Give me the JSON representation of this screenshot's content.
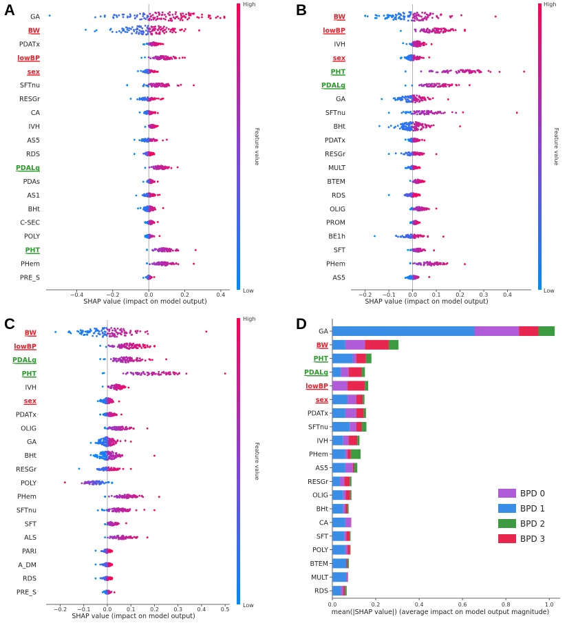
{
  "colorbar": {
    "high": "High",
    "low": "Low",
    "title": "Feature value",
    "color_high": "#ff0052",
    "color_low": "#008bfb"
  },
  "chart_data": [
    {
      "panel": "A",
      "type": "beeswarm",
      "xlabel": "SHAP value (impact on model output)",
      "xlim": [
        -0.57,
        0.45
      ],
      "xticks": [
        -0.4,
        -0.2,
        0.0,
        0.2,
        0.4
      ],
      "tick_labels": [
        "−0.4",
        "−0.2",
        "0.0",
        "0.2",
        "0.4"
      ],
      "features": [
        {
          "name": "GA",
          "style": "plain",
          "min": -0.55,
          "max": 0.42,
          "center": 0.1,
          "spread": 0.45,
          "thick": 5
        },
        {
          "name": "BW",
          "style": "red",
          "min": -0.35,
          "max": 0.28,
          "center": 0.0,
          "spread": 0.3,
          "thick": 5
        },
        {
          "name": "PDATx",
          "style": "plain",
          "min": -0.03,
          "max": 0.08,
          "center": 0.03,
          "spread": 0.05,
          "thick": 2
        },
        {
          "name": "lowBP",
          "style": "red",
          "min": -0.04,
          "max": 0.2,
          "center": 0.08,
          "spread": 0.12,
          "thick": 2
        },
        {
          "name": "sex",
          "style": "red",
          "min": -0.06,
          "max": 0.05,
          "center": 0.0,
          "spread": 0.05,
          "thick": 2
        },
        {
          "name": "SFTnu",
          "style": "plain",
          "min": -0.12,
          "max": 0.25,
          "center": 0.05,
          "spread": 0.15,
          "thick": 2
        },
        {
          "name": "RESGr",
          "style": "plain",
          "min": -0.1,
          "max": 0.08,
          "center": 0.0,
          "spread": 0.08,
          "thick": 2
        },
        {
          "name": "CA",
          "style": "plain",
          "min": -0.05,
          "max": 0.05,
          "center": 0.0,
          "spread": 0.04,
          "thick": 2
        },
        {
          "name": "IVH",
          "style": "plain",
          "min": -0.02,
          "max": 0.05,
          "center": 0.02,
          "spread": 0.03,
          "thick": 2
        },
        {
          "name": "AS5",
          "style": "plain",
          "min": -0.08,
          "max": 0.1,
          "center": 0.0,
          "spread": 0.07,
          "thick": 2
        },
        {
          "name": "RDS",
          "style": "plain",
          "min": -0.08,
          "max": 0.03,
          "center": 0.0,
          "spread": 0.04,
          "thick": 2
        },
        {
          "name": "PDALg",
          "style": "green",
          "min": -0.02,
          "max": 0.16,
          "center": 0.06,
          "spread": 0.08,
          "thick": 2
        },
        {
          "name": "PDAs",
          "style": "plain",
          "min": -0.03,
          "max": 0.05,
          "center": 0.01,
          "spread": 0.03,
          "thick": 2
        },
        {
          "name": "AS1",
          "style": "plain",
          "min": -0.07,
          "max": 0.06,
          "center": 0.0,
          "spread": 0.05,
          "thick": 2
        },
        {
          "name": "BHt",
          "style": "plain",
          "min": -0.06,
          "max": 0.08,
          "center": 0.0,
          "spread": 0.05,
          "thick": 3
        },
        {
          "name": "C-SEC",
          "style": "plain",
          "min": -0.02,
          "max": 0.05,
          "center": 0.01,
          "spread": 0.03,
          "thick": 2
        },
        {
          "name": "POLY",
          "style": "plain",
          "min": -0.02,
          "max": 0.06,
          "center": 0.0,
          "spread": 0.03,
          "thick": 2
        },
        {
          "name": "PHT",
          "style": "green",
          "min": -0.01,
          "max": 0.26,
          "center": 0.08,
          "spread": 0.12,
          "thick": 2
        },
        {
          "name": "PHem",
          "style": "plain",
          "min": -0.01,
          "max": 0.25,
          "center": 0.08,
          "spread": 0.1,
          "thick": 2
        },
        {
          "name": "PRE_S",
          "style": "plain",
          "min": -0.03,
          "max": 0.03,
          "center": 0.0,
          "spread": 0.02,
          "thick": 2
        }
      ]
    },
    {
      "panel": "B",
      "type": "beeswarm",
      "xlabel": "SHAP value (impact on model output)",
      "xlim": [
        -0.26,
        0.5
      ],
      "xticks": [
        -0.2,
        -0.1,
        0.0,
        0.1,
        0.2,
        0.3,
        0.4
      ],
      "tick_labels": [
        "−0.2",
        "−0.1",
        "0.0",
        "0.1",
        "0.2",
        "0.3",
        "0.4"
      ],
      "features": [
        {
          "name": "BW",
          "style": "red",
          "min": -0.2,
          "max": 0.35,
          "center": 0.0,
          "spread": 0.22,
          "thick": 5
        },
        {
          "name": "lowBP",
          "style": "red",
          "min": -0.05,
          "max": 0.22,
          "center": 0.1,
          "spread": 0.12,
          "thick": 3
        },
        {
          "name": "IVH",
          "style": "plain",
          "min": -0.04,
          "max": 0.08,
          "center": 0.02,
          "spread": 0.05,
          "thick": 3
        },
        {
          "name": "sex",
          "style": "red",
          "min": -0.05,
          "max": 0.07,
          "center": 0.0,
          "spread": 0.05,
          "thick": 3
        },
        {
          "name": "PHT",
          "style": "green",
          "min": -0.03,
          "max": 0.47,
          "center": 0.2,
          "spread": 0.2,
          "thick": 2
        },
        {
          "name": "PDALg",
          "style": "green",
          "min": -0.03,
          "max": 0.24,
          "center": 0.1,
          "spread": 0.12,
          "thick": 2
        },
        {
          "name": "GA",
          "style": "plain",
          "min": -0.13,
          "max": 0.15,
          "center": 0.0,
          "spread": 0.1,
          "thick": 4
        },
        {
          "name": "SFTnu",
          "style": "plain",
          "min": -0.1,
          "max": 0.44,
          "center": 0.05,
          "spread": 0.14,
          "thick": 2
        },
        {
          "name": "BHt",
          "style": "plain",
          "min": -0.14,
          "max": 0.2,
          "center": 0.0,
          "spread": 0.1,
          "thick": 5
        },
        {
          "name": "PDATx",
          "style": "plain",
          "min": -0.03,
          "max": 0.05,
          "center": 0.0,
          "spread": 0.04,
          "thick": 2
        },
        {
          "name": "RESGr",
          "style": "plain",
          "min": -0.1,
          "max": 0.1,
          "center": 0.0,
          "spread": 0.07,
          "thick": 2
        },
        {
          "name": "MULT",
          "style": "plain",
          "min": -0.03,
          "max": 0.03,
          "center": 0.0,
          "spread": 0.03,
          "thick": 2
        },
        {
          "name": "BTEM",
          "style": "plain",
          "min": -0.01,
          "max": 0.05,
          "center": 0.02,
          "spread": 0.03,
          "thick": 2
        },
        {
          "name": "RDS",
          "style": "plain",
          "min": -0.1,
          "max": 0.03,
          "center": 0.0,
          "spread": 0.05,
          "thick": 2
        },
        {
          "name": "OLIG",
          "style": "plain",
          "min": -0.01,
          "max": 0.1,
          "center": 0.03,
          "spread": 0.05,
          "thick": 2
        },
        {
          "name": "PROM",
          "style": "plain",
          "min": -0.01,
          "max": 0.03,
          "center": 0.01,
          "spread": 0.02,
          "thick": 2
        },
        {
          "name": "BE1h",
          "style": "plain",
          "min": -0.16,
          "max": 0.13,
          "center": 0.0,
          "spread": 0.08,
          "thick": 2
        },
        {
          "name": "SFT",
          "style": "plain",
          "min": -0.02,
          "max": 0.09,
          "center": 0.02,
          "spread": 0.04,
          "thick": 2
        },
        {
          "name": "PHem",
          "style": "plain",
          "min": -0.01,
          "max": 0.22,
          "center": 0.07,
          "spread": 0.1,
          "thick": 2
        },
        {
          "name": "AS5",
          "style": "plain",
          "min": -0.03,
          "max": 0.07,
          "center": 0.0,
          "spread": 0.04,
          "thick": 2
        }
      ]
    },
    {
      "panel": "C",
      "type": "beeswarm",
      "xlabel": "SHAP value (impact on model output)",
      "xlim": [
        -0.26,
        0.52
      ],
      "xticks": [
        -0.2,
        -0.1,
        0.0,
        0.1,
        0.2,
        0.3,
        0.4,
        0.5
      ],
      "tick_labels": [
        "−0.2",
        "−0.1",
        "0.0",
        "0.1",
        "0.2",
        "0.3",
        "0.4",
        "0.5"
      ],
      "features": [
        {
          "name": "BW",
          "style": "red",
          "min": -0.22,
          "max": 0.42,
          "center": 0.0,
          "spread": 0.22,
          "thick": 5
        },
        {
          "name": "lowBP",
          "style": "red",
          "min": -0.03,
          "max": 0.2,
          "center": 0.1,
          "spread": 0.12,
          "thick": 3
        },
        {
          "name": "PDALg",
          "style": "green",
          "min": -0.03,
          "max": 0.25,
          "center": 0.08,
          "spread": 0.12,
          "thick": 3
        },
        {
          "name": "PHT",
          "style": "green",
          "min": -0.02,
          "max": 0.5,
          "center": 0.2,
          "spread": 0.2,
          "thick": 2
        },
        {
          "name": "IVH",
          "style": "plain",
          "min": -0.02,
          "max": 0.09,
          "center": 0.04,
          "spread": 0.05,
          "thick": 3
        },
        {
          "name": "sex",
          "style": "red",
          "min": -0.04,
          "max": 0.05,
          "center": 0.0,
          "spread": 0.04,
          "thick": 3
        },
        {
          "name": "PDATx",
          "style": "plain",
          "min": -0.03,
          "max": 0.06,
          "center": 0.01,
          "spread": 0.04,
          "thick": 2
        },
        {
          "name": "OLIG",
          "style": "plain",
          "min": -0.01,
          "max": 0.17,
          "center": 0.05,
          "spread": 0.08,
          "thick": 2
        },
        {
          "name": "GA",
          "style": "plain",
          "min": -0.07,
          "max": 0.1,
          "center": 0.0,
          "spread": 0.06,
          "thick": 5
        },
        {
          "name": "BHt",
          "style": "plain",
          "min": -0.07,
          "max": 0.2,
          "center": 0.0,
          "spread": 0.08,
          "thick": 5
        },
        {
          "name": "RESGr",
          "style": "plain",
          "min": -0.12,
          "max": 0.1,
          "center": 0.0,
          "spread": 0.07,
          "thick": 2
        },
        {
          "name": "POLY",
          "style": "plain",
          "min": -0.18,
          "max": 0.02,
          "center": -0.05,
          "spread": 0.08,
          "thick": 2
        },
        {
          "name": "PHem",
          "style": "plain",
          "min": -0.01,
          "max": 0.22,
          "center": 0.08,
          "spread": 0.1,
          "thick": 2
        },
        {
          "name": "SFTnu",
          "style": "plain",
          "min": -0.04,
          "max": 0.2,
          "center": 0.05,
          "spread": 0.1,
          "thick": 2
        },
        {
          "name": "SFT",
          "style": "plain",
          "min": -0.01,
          "max": 0.08,
          "center": 0.02,
          "spread": 0.04,
          "thick": 2
        },
        {
          "name": "ALS",
          "style": "plain",
          "min": -0.01,
          "max": 0.17,
          "center": 0.06,
          "spread": 0.08,
          "thick": 2
        },
        {
          "name": "PARI",
          "style": "plain",
          "min": -0.05,
          "max": 0.02,
          "center": 0.0,
          "spread": 0.03,
          "thick": 2
        },
        {
          "name": "A_DM",
          "style": "plain",
          "min": -0.05,
          "max": 0.02,
          "center": 0.0,
          "spread": 0.03,
          "thick": 2
        },
        {
          "name": "RDS",
          "style": "plain",
          "min": -0.05,
          "max": 0.02,
          "center": 0.0,
          "spread": 0.03,
          "thick": 2
        },
        {
          "name": "PRE_S",
          "style": "plain",
          "min": -0.02,
          "max": 0.03,
          "center": 0.0,
          "spread": 0.02,
          "thick": 2
        }
      ]
    },
    {
      "panel": "D",
      "type": "bar",
      "orientation": "horizontal",
      "stacked": true,
      "xlabel": "mean(|SHAP value|) (average impact on model output magnitude)",
      "xlim": [
        0,
        1.05
      ],
      "xticks": [
        0.0,
        0.2,
        0.4,
        0.6,
        0.8,
        1.0
      ],
      "tick_labels": [
        "0.0",
        "0.2",
        "0.4",
        "0.6",
        "0.8",
        "1.0"
      ],
      "categories": [
        "GA",
        "BW",
        "PHT",
        "PDALg",
        "lowBP",
        "sex",
        "PDATx",
        "SFTnu",
        "IVH",
        "PHem",
        "AS5",
        "RESGr",
        "OLIG",
        "BHt",
        "CA",
        "SFT",
        "POLY",
        "BTEM",
        "MULT",
        "RDS"
      ],
      "category_styles": [
        "plain",
        "red",
        "green",
        "green",
        "red",
        "red",
        "plain",
        "plain",
        "plain",
        "plain",
        "plain",
        "plain",
        "plain",
        "plain",
        "plain",
        "plain",
        "plain",
        "plain",
        "plain",
        "plain"
      ],
      "series": [
        {
          "name": "BPD 1",
          "color": "#3a8ee6",
          "values": [
            0.655,
            0.06,
            0.095,
            0.04,
            0.0,
            0.07,
            0.06,
            0.08,
            0.05,
            0.06,
            0.06,
            0.035,
            0.05,
            0.05,
            0.06,
            0.055,
            0.06,
            0.065,
            0.065,
            0.04
          ]
        },
        {
          "name": "BPD 0",
          "color": "#b05cd8",
          "values": [
            0.205,
            0.09,
            0.015,
            0.035,
            0.07,
            0.04,
            0.05,
            0.03,
            0.025,
            0.01,
            0.035,
            0.02,
            0.012,
            0.01,
            0.025,
            0.01,
            0.01,
            0.0,
            0.005,
            0.01
          ]
        },
        {
          "name": "BPD 3",
          "color": "#e8274e",
          "values": [
            0.09,
            0.11,
            0.045,
            0.06,
            0.08,
            0.03,
            0.035,
            0.025,
            0.04,
            0.015,
            0.005,
            0.025,
            0.02,
            0.01,
            0.002,
            0.015,
            0.012,
            0.005,
            0.002,
            0.008
          ]
        },
        {
          "name": "BPD 2",
          "color": "#3c9a40",
          "values": [
            0.075,
            0.045,
            0.025,
            0.015,
            0.015,
            0.008,
            0.01,
            0.022,
            0.01,
            0.045,
            0.015,
            0.008,
            0.006,
            0.005,
            0.0,
            0.004,
            0.002,
            0.006,
            0.0,
            0.008
          ]
        }
      ],
      "legend": [
        "BPD 0",
        "BPD 1",
        "BPD 2",
        "BPD 3"
      ]
    }
  ]
}
